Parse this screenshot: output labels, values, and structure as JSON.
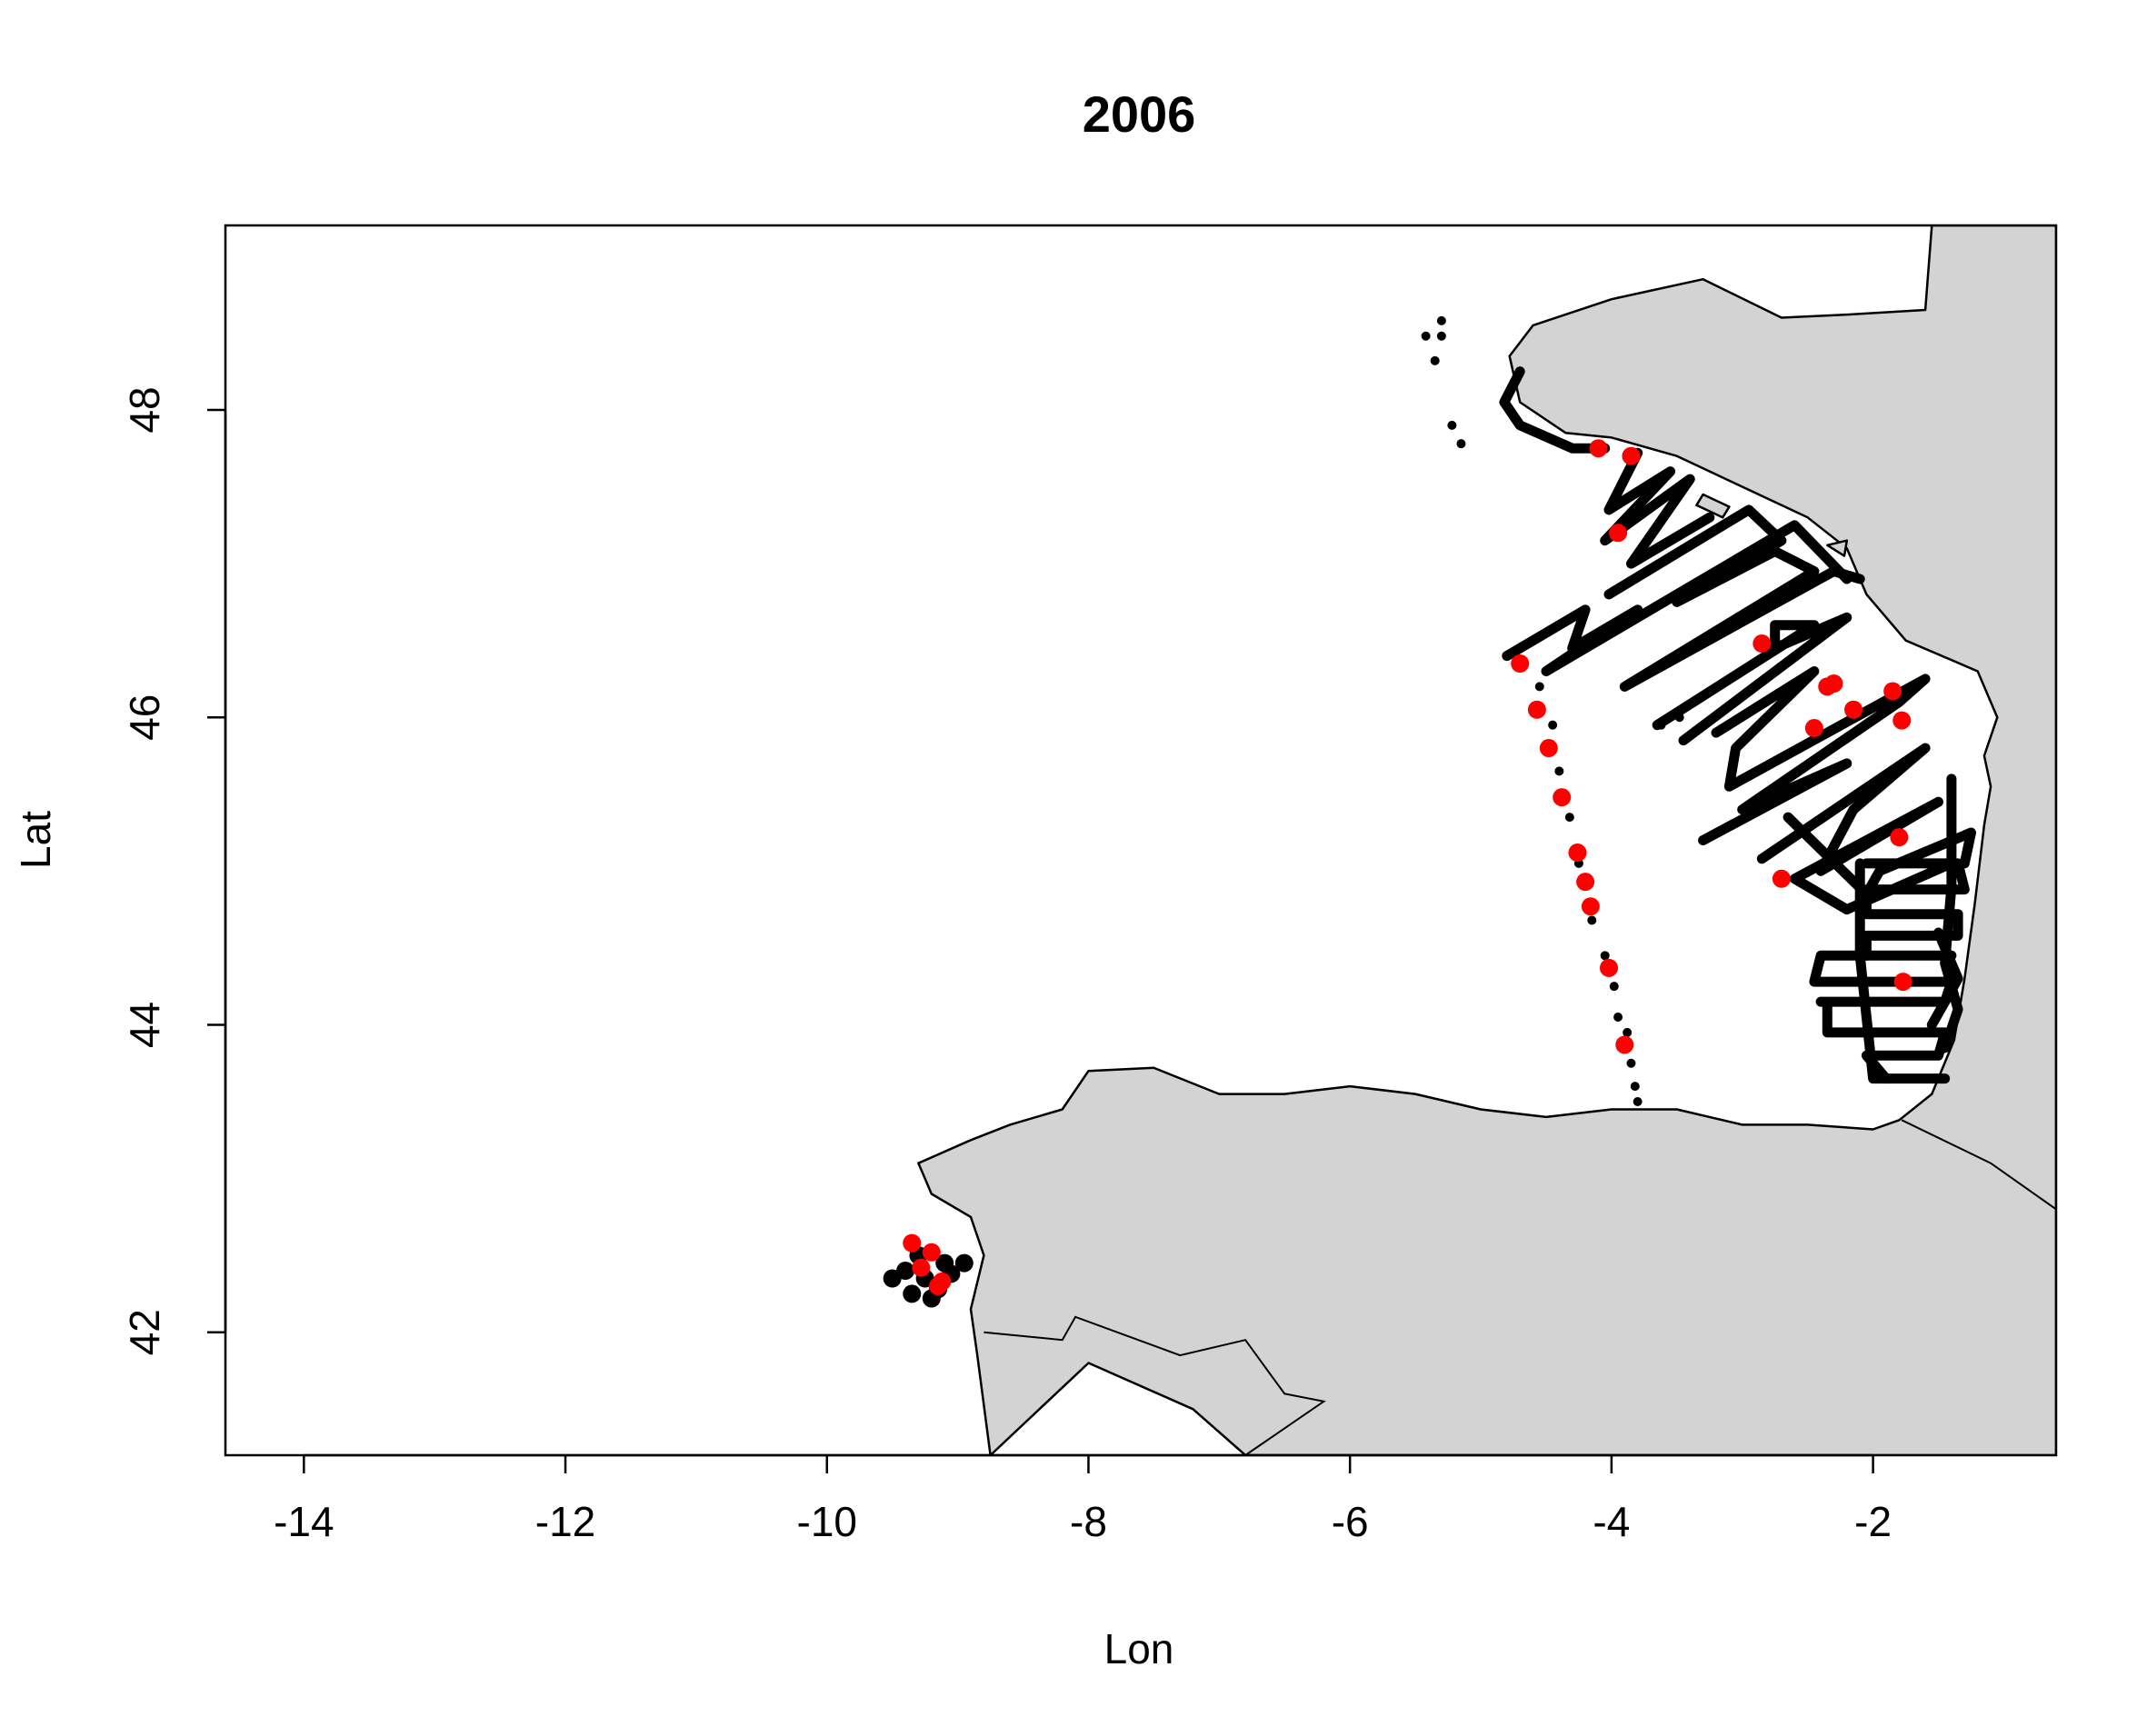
{
  "chart_data": {
    "type": "scatter",
    "title": "2006",
    "xlabel": "Lon",
    "ylabel": "Lat",
    "xlim": [
      -14.6,
      -0.6
    ],
    "ylim": [
      41.2,
      49.2
    ],
    "x_ticks": [
      "-14",
      "-12",
      "-10",
      "-8",
      "-6",
      "-4",
      "-2"
    ],
    "y_ticks": [
      "42",
      "44",
      "46",
      "48"
    ],
    "grid": false,
    "land_color": "#d3d3d3",
    "track_color": "#000000",
    "station_color": "#ff0000",
    "series": [
      {
        "type": "track",
        "color": "#000000",
        "segments": [
          [
            [
              -4.05,
              47.75
            ],
            [
              -4.3,
              47.75
            ],
            [
              -4.7,
              47.9
            ],
            [
              -4.82,
              48.05
            ],
            [
              -4.7,
              48.25
            ]
          ],
          [
            [
              -3.8,
              47.72
            ],
            [
              -4.02,
              47.35
            ],
            [
              -3.55,
              47.6
            ],
            [
              -4.05,
              47.15
            ],
            [
              -3.4,
              47.55
            ],
            [
              -3.85,
              47.0
            ],
            [
              -3.25,
              47.3
            ]
          ],
          [
            [
              -4.02,
              46.8
            ],
            [
              -2.95,
              47.35
            ],
            [
              -2.7,
              47.15
            ],
            [
              -3.5,
              46.75
            ],
            [
              -2.75,
              47.08
            ],
            [
              -2.45,
              46.95
            ],
            [
              -3.9,
              46.2
            ],
            [
              -2.3,
              46.95
            ],
            [
              -2.1,
              46.9
            ]
          ],
          [
            [
              -4.8,
              46.4
            ],
            [
              -4.2,
              46.7
            ],
            [
              -4.3,
              46.45
            ],
            [
              -3.8,
              46.7
            ],
            [
              -4.5,
              46.3
            ],
            [
              -2.6,
              47.25
            ],
            [
              -2.2,
              46.9
            ]
          ],
          [
            [
              -3.65,
              45.95
            ],
            [
              -2.45,
              46.6
            ],
            [
              -2.75,
              46.6
            ],
            [
              -2.75,
              46.45
            ],
            [
              -2.2,
              46.65
            ],
            [
              -3.45,
              45.85
            ]
          ],
          [
            [
              -3.2,
              45.9
            ],
            [
              -2.45,
              46.3
            ],
            [
              -3.05,
              45.8
            ],
            [
              -3.1,
              45.55
            ],
            [
              -1.6,
              46.25
            ],
            [
              -1.8,
              46.1
            ],
            [
              -3.0,
              45.4
            ],
            [
              -2.2,
              45.7
            ],
            [
              -3.3,
              45.2
            ]
          ],
          [
            [
              -2.85,
              45.08
            ],
            [
              -1.6,
              45.8
            ],
            [
              -2.15,
              45.4
            ],
            [
              -2.4,
              45.0
            ],
            [
              -1.5,
              45.45
            ],
            [
              -2.6,
              44.95
            ],
            [
              -2.2,
              44.75
            ],
            [
              -1.4,
              45.05
            ]
          ],
          [
            [
              -2.65,
              45.35
            ],
            [
              -2.05,
              44.85
            ],
            [
              -1.95,
              45.0
            ],
            [
              -1.25,
              45.25
            ],
            [
              -1.3,
              45.05
            ]
          ],
          [
            [
              -2.1,
              45.05
            ],
            [
              -2.1,
              44.45
            ],
            [
              -2.0,
              43.65
            ],
            [
              -1.45,
              43.65
            ]
          ],
          [
            [
              -2.05,
              45.05
            ],
            [
              -1.35,
              45.05
            ],
            [
              -1.3,
              44.88
            ],
            [
              -2.05,
              44.88
            ],
            [
              -2.05,
              44.72
            ],
            [
              -1.35,
              44.72
            ],
            [
              -1.35,
              44.58
            ],
            [
              -2.05,
              44.58
            ],
            [
              -2.05,
              44.45
            ],
            [
              -1.4,
              44.45
            ]
          ],
          [
            [
              -2.05,
              44.45
            ],
            [
              -2.4,
              44.45
            ],
            [
              -2.45,
              44.28
            ],
            [
              -1.4,
              44.28
            ],
            [
              -1.45,
              44.15
            ],
            [
              -2.4,
              44.15
            ]
          ],
          [
            [
              -2.35,
              44.12
            ],
            [
              -2.35,
              43.95
            ],
            [
              -1.45,
              43.95
            ],
            [
              -1.5,
              43.8
            ],
            [
              -2.05,
              43.8
            ],
            [
              -1.9,
              43.65
            ]
          ],
          [
            [
              -1.4,
              45.6
            ],
            [
              -1.4,
              44.9
            ],
            [
              -1.45,
              44.4
            ],
            [
              -1.35,
              44.1
            ],
            [
              -1.45,
              43.85
            ]
          ],
          [
            [
              -1.5,
              44.6
            ],
            [
              -1.35,
              44.3
            ],
            [
              -1.55,
              44.0
            ]
          ]
        ],
        "point_clusters": [
          [
            [
              -5.3,
              48.58
            ],
            [
              -5.3,
              48.48
            ],
            [
              -5.42,
              48.48
            ],
            [
              -5.35,
              48.32
            ],
            [
              -5.22,
              47.9
            ],
            [
              -5.15,
              47.78
            ],
            [
              -4.55,
              46.2
            ],
            [
              -4.45,
              45.95
            ],
            [
              -4.4,
              45.65
            ],
            [
              -4.32,
              45.35
            ],
            [
              -4.25,
              45.05
            ],
            [
              -4.15,
              44.68
            ],
            [
              -4.05,
              44.45
            ],
            [
              -3.98,
              44.25
            ],
            [
              -3.95,
              44.05
            ],
            [
              -3.88,
              43.95
            ],
            [
              -3.85,
              43.75
            ],
            [
              -3.82,
              43.6
            ],
            [
              -3.8,
              43.5
            ],
            [
              -3.48,
              46.0
            ],
            [
              -3.62,
              45.95
            ]
          ],
          [
            [
              -9.5,
              42.35
            ],
            [
              -9.35,
              42.25
            ],
            [
              -9.25,
              42.35
            ],
            [
              -9.15,
              42.28
            ],
            [
              -9.05,
              42.38
            ],
            [
              -8.95,
              42.45
            ],
            [
              -9.4,
              42.4
            ],
            [
              -9.3,
              42.5
            ],
            [
              -9.1,
              42.45
            ],
            [
              -9.2,
              42.22
            ]
          ]
        ]
      },
      {
        "type": "stations",
        "color": "#ff0000",
        "points": [
          [
            -4.1,
            47.75
          ],
          [
            -3.85,
            47.7
          ],
          [
            -3.95,
            47.2
          ],
          [
            -4.7,
            46.35
          ],
          [
            -4.57,
            46.05
          ],
          [
            -4.48,
            45.8
          ],
          [
            -4.38,
            45.48
          ],
          [
            -4.26,
            45.12
          ],
          [
            -4.2,
            44.93
          ],
          [
            -4.16,
            44.77
          ],
          [
            -4.02,
            44.37
          ],
          [
            -3.9,
            43.87
          ],
          [
            -2.85,
            46.48
          ],
          [
            -2.35,
            46.2
          ],
          [
            -2.3,
            46.22
          ],
          [
            -2.45,
            45.93
          ],
          [
            -2.15,
            46.05
          ],
          [
            -1.85,
            46.17
          ],
          [
            -1.78,
            45.98
          ],
          [
            -1.8,
            45.22
          ],
          [
            -2.7,
            44.95
          ],
          [
            -1.77,
            44.28
          ],
          [
            -9.35,
            42.58
          ],
          [
            -9.28,
            42.42
          ],
          [
            -9.2,
            42.52
          ],
          [
            -9.15,
            42.3
          ],
          [
            -9.12,
            42.33
          ]
        ]
      }
    ],
    "land": [
      [
        [
          -8.6,
          43.35
        ],
        [
          -8.2,
          43.45
        ],
        [
          -8.0,
          43.7
        ],
        [
          -7.5,
          43.72
        ],
        [
          -7.0,
          43.55
        ],
        [
          -6.5,
          43.55
        ],
        [
          -6.0,
          43.6
        ],
        [
          -5.5,
          43.55
        ],
        [
          -5.0,
          43.45
        ],
        [
          -4.5,
          43.4
        ],
        [
          -4.0,
          43.45
        ],
        [
          -3.5,
          43.45
        ],
        [
          -3.0,
          43.35
        ],
        [
          -2.5,
          43.35
        ],
        [
          -2.0,
          43.32
        ],
        [
          -1.8,
          43.38
        ],
        [
          -1.55,
          43.55
        ],
        [
          -1.38,
          43.9
        ],
        [
          -1.3,
          44.3
        ],
        [
          -1.22,
          44.8
        ],
        [
          -1.15,
          45.3
        ],
        [
          -1.1,
          45.55
        ],
        [
          -1.15,
          45.75
        ],
        [
          -1.05,
          46.0
        ],
        [
          -1.2,
          46.3
        ],
        [
          -1.75,
          46.5
        ],
        [
          -2.05,
          46.8
        ],
        [
          -2.2,
          47.1
        ],
        [
          -2.5,
          47.3
        ],
        [
          -3.0,
          47.5
        ],
        [
          -3.5,
          47.7
        ],
        [
          -4.0,
          47.82
        ],
        [
          -4.35,
          47.85
        ],
        [
          -4.7,
          48.05
        ],
        [
          -4.78,
          48.35
        ],
        [
          -4.6,
          48.55
        ],
        [
          -4.0,
          48.72
        ],
        [
          -3.3,
          48.85
        ],
        [
          -2.7,
          48.6
        ],
        [
          -2.2,
          48.62
        ],
        [
          -1.6,
          48.65
        ],
        [
          -1.55,
          49.2
        ],
        [
          -0.6,
          49.2
        ],
        [
          -0.6,
          41.2
        ],
        [
          -6.8,
          41.2
        ],
        [
          -7.2,
          41.5
        ],
        [
          -8.0,
          41.8
        ],
        [
          -8.75,
          41.2
        ],
        [
          -8.85,
          41.85
        ],
        [
          -8.9,
          42.15
        ],
        [
          -8.8,
          42.5
        ],
        [
          -8.9,
          42.75
        ],
        [
          -9.2,
          42.9
        ],
        [
          -9.3,
          43.1
        ],
        [
          -8.9,
          43.25
        ],
        [
          -8.6,
          43.35
        ]
      ],
      [
        [
          -3.3,
          47.45
        ],
        [
          -3.1,
          47.37
        ],
        [
          -3.15,
          47.3
        ],
        [
          -3.35,
          47.38
        ],
        [
          -3.3,
          47.45
        ]
      ],
      [
        [
          -2.35,
          47.12
        ],
        [
          -2.2,
          47.15
        ],
        [
          -2.22,
          47.05
        ],
        [
          -2.35,
          47.12
        ]
      ]
    ],
    "borders": [
      [
        [
          -1.78,
          43.38
        ],
        [
          -1.1,
          43.1
        ],
        [
          -0.6,
          42.8
        ]
      ],
      [
        [
          -8.8,
          42.0
        ],
        [
          -8.2,
          41.95
        ],
        [
          -8.1,
          42.1
        ],
        [
          -7.3,
          41.85
        ],
        [
          -6.8,
          41.95
        ],
        [
          -6.5,
          41.6
        ],
        [
          -6.2,
          41.55
        ],
        [
          -6.8,
          41.2
        ]
      ]
    ]
  }
}
